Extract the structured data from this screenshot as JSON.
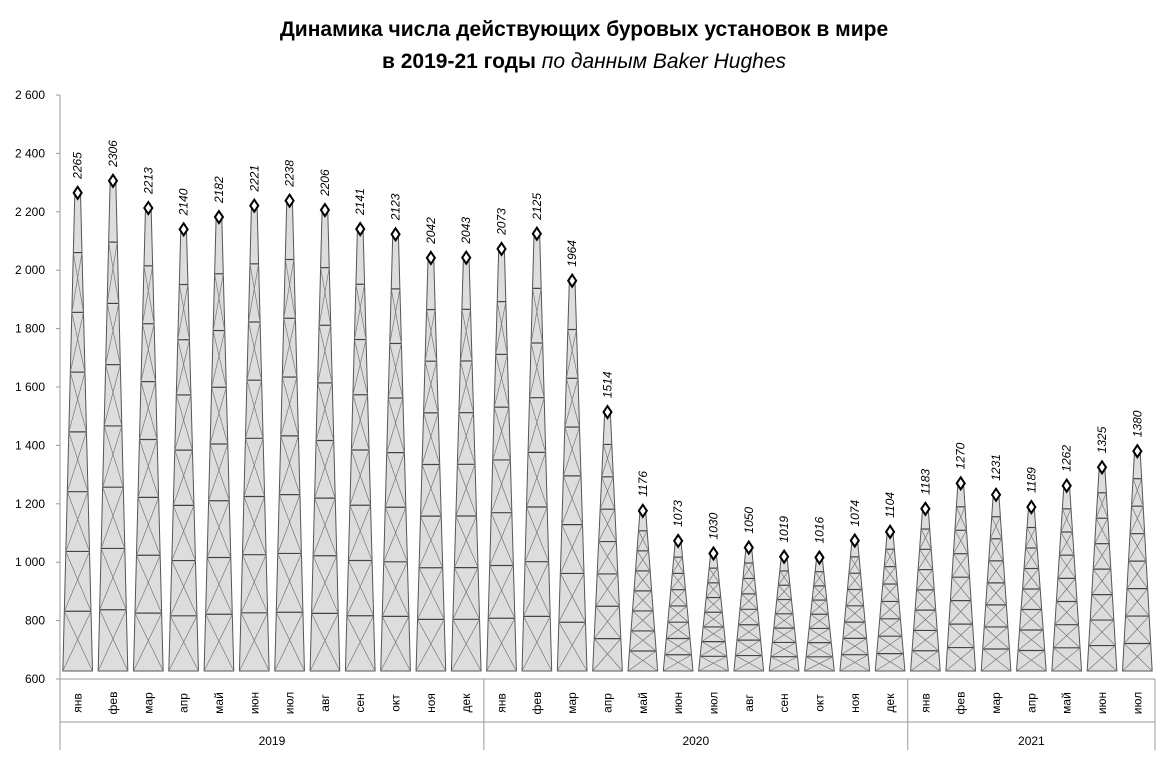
{
  "chart_data": {
    "type": "tower-bar",
    "title": "Динамика числа действующих буровых установок в мире",
    "subtitle_bold": "в 2019-21 годы",
    "subtitle_italic": "по данным Baker Hughes",
    "color": "#555555",
    "ylim": [
      600,
      2600
    ],
    "yticks": [
      {
        "value": 600,
        "label": "600"
      },
      {
        "value": 800,
        "label": "800"
      },
      {
        "value": 1000,
        "label": "1 000"
      },
      {
        "value": 1200,
        "label": "1 200"
      },
      {
        "value": 1400,
        "label": "1 400"
      },
      {
        "value": 1600,
        "label": "1 600"
      },
      {
        "value": 1800,
        "label": "1 800"
      },
      {
        "value": 2000,
        "label": "2 000"
      },
      {
        "value": 2200,
        "label": "2 200"
      },
      {
        "value": 2400,
        "label": "2 400"
      },
      {
        "value": 2600,
        "label": "2 600"
      }
    ],
    "groups": [
      {
        "name": "2019",
        "categories": [
          "янв",
          "фев",
          "мар",
          "апр",
          "май",
          "июн",
          "июл",
          "авг",
          "сен",
          "окт",
          "ноя",
          "дек"
        ],
        "values": [
          2265,
          2306,
          2213,
          2140,
          2182,
          2221,
          2238,
          2206,
          2141,
          2123,
          2042,
          2043
        ]
      },
      {
        "name": "2020",
        "categories": [
          "янв",
          "фев",
          "мар",
          "апр",
          "май",
          "июн",
          "июл",
          "авг",
          "сен",
          "окт",
          "ноя",
          "дек"
        ],
        "values": [
          2073,
          2125,
          1964,
          1514,
          1176,
          1073,
          1030,
          1050,
          1019,
          1016,
          1074,
          1104
        ]
      },
      {
        "name": "2021",
        "categories": [
          "янв",
          "фев",
          "мар",
          "апр",
          "май",
          "июн",
          "июл"
        ],
        "values": [
          1183,
          1270,
          1231,
          1189,
          1262,
          1325,
          1380
        ]
      }
    ]
  }
}
